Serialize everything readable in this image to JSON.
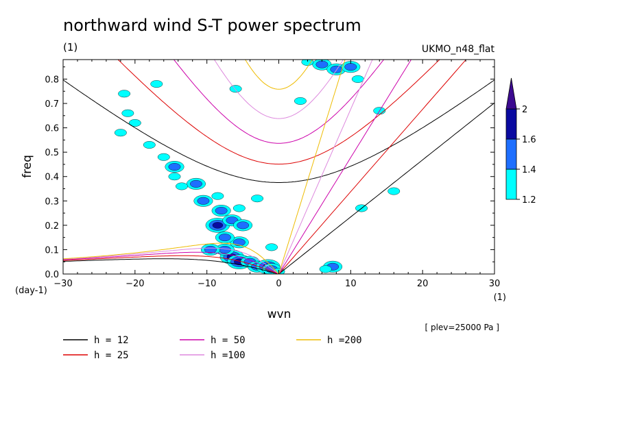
{
  "chart_data": {
    "type": "heatmap",
    "title": "northward wind S-T power spectrum",
    "subtitle_left": "(1)",
    "subtitle_right": "UKMO_n48_flat",
    "xlabel": "wvn",
    "ylabel": "freq",
    "x_unit": "(1)",
    "y_unit": "(day-1)",
    "xlim": [
      -30,
      30
    ],
    "ylim": [
      0,
      0.88
    ],
    "x_ticks": [
      -30,
      -20,
      -10,
      0,
      10,
      20,
      30
    ],
    "x_tick_labels": [
      "−30",
      "−20",
      "−10",
      "0",
      "10",
      "20",
      "30"
    ],
    "y_ticks": [
      0,
      0.1,
      0.2,
      0.3,
      0.4,
      0.5,
      0.6,
      0.7,
      0.8
    ],
    "y_tick_labels": [
      "0.0",
      "0.1",
      "0.2",
      "0.3",
      "0.4",
      "0.5",
      "0.6",
      "0.7",
      "0.8"
    ],
    "annotation": "[ plev=25000 Pa ]",
    "colorbar": {
      "levels": [
        1.2,
        1.4,
        1.6,
        2
      ],
      "labels": [
        "1.2",
        "1.4",
        "1.6",
        "2"
      ],
      "colors": [
        "#00ffff",
        "#1e6fff",
        "#0a0aa0",
        "#3c0a90"
      ]
    },
    "dispersion_curves": [
      {
        "label": "h = 12",
        "h": 12,
        "color": "#000000"
      },
      {
        "label": "h = 25",
        "h": 25,
        "color": "#dd0000"
      },
      {
        "label": "h = 50",
        "h": 50,
        "color": "#cc00aa"
      },
      {
        "label": "h =100",
        "h": 100,
        "color": "#dd88dd"
      },
      {
        "label": "h =200",
        "h": 200,
        "color": "#eebb00"
      }
    ],
    "power_blobs": [
      {
        "x": -6.5,
        "y": 0.07,
        "level": 3
      },
      {
        "x": -7.5,
        "y": 0.1,
        "level": 2
      },
      {
        "x": -5.5,
        "y": 0.05,
        "level": 3
      },
      {
        "x": -4,
        "y": 0.05,
        "level": 2
      },
      {
        "x": -3,
        "y": 0.03,
        "level": 2
      },
      {
        "x": -1.5,
        "y": 0.03,
        "level": 3
      },
      {
        "x": -1,
        "y": 0.02,
        "level": 2
      },
      {
        "x": 0,
        "y": 0.01,
        "level": 1
      },
      {
        "x": 7.5,
        "y": 0.03,
        "level": 2
      },
      {
        "x": 6.5,
        "y": 0.02,
        "level": 1
      },
      {
        "x": -5.5,
        "y": 0.13,
        "level": 2
      },
      {
        "x": -7.5,
        "y": 0.15,
        "level": 2
      },
      {
        "x": -9.5,
        "y": 0.1,
        "level": 2
      },
      {
        "x": -8.5,
        "y": 0.2,
        "level": 3
      },
      {
        "x": -6.5,
        "y": 0.22,
        "level": 2
      },
      {
        "x": -5,
        "y": 0.2,
        "level": 2
      },
      {
        "x": -8,
        "y": 0.26,
        "level": 2
      },
      {
        "x": -10.5,
        "y": 0.3,
        "level": 2
      },
      {
        "x": -11.5,
        "y": 0.37,
        "level": 2
      },
      {
        "x": -13.5,
        "y": 0.36,
        "level": 1
      },
      {
        "x": -14.5,
        "y": 0.4,
        "level": 1
      },
      {
        "x": -14.5,
        "y": 0.44,
        "level": 2
      },
      {
        "x": -16,
        "y": 0.48,
        "level": 1
      },
      {
        "x": -18,
        "y": 0.53,
        "level": 1
      },
      {
        "x": -21,
        "y": 0.66,
        "level": 1
      },
      {
        "x": -20,
        "y": 0.62,
        "level": 1
      },
      {
        "x": -22,
        "y": 0.58,
        "level": 1
      },
      {
        "x": -21.5,
        "y": 0.74,
        "level": 1
      },
      {
        "x": -3,
        "y": 0.31,
        "level": 1
      },
      {
        "x": -5.5,
        "y": 0.27,
        "level": 1
      },
      {
        "x": -8.5,
        "y": 0.32,
        "level": 1
      },
      {
        "x": 6,
        "y": 0.86,
        "level": 2
      },
      {
        "x": 8,
        "y": 0.84,
        "level": 2
      },
      {
        "x": 4,
        "y": 0.87,
        "level": 1
      },
      {
        "x": 10,
        "y": 0.85,
        "level": 2
      },
      {
        "x": 11,
        "y": 0.8,
        "level": 1
      },
      {
        "x": 14,
        "y": 0.67,
        "level": 1
      },
      {
        "x": -6,
        "y": 0.76,
        "level": 1
      },
      {
        "x": 3,
        "y": 0.71,
        "level": 1
      },
      {
        "x": 16,
        "y": 0.34,
        "level": 1
      },
      {
        "x": 11.5,
        "y": 0.27,
        "level": 1
      },
      {
        "x": -1,
        "y": 0.11,
        "level": 1
      },
      {
        "x": -17,
        "y": 0.78,
        "level": 1
      }
    ]
  }
}
